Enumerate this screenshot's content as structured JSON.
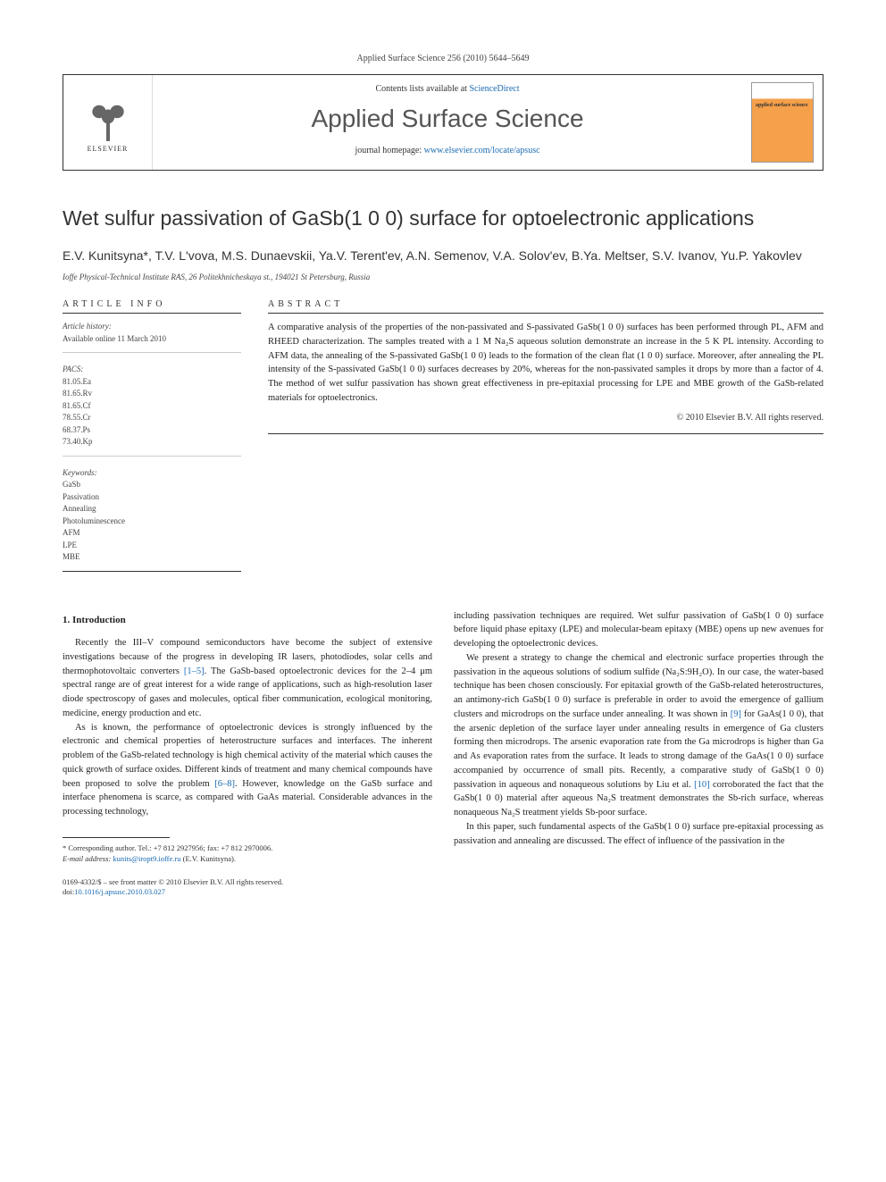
{
  "journal_ref": "Applied Surface Science 256 (2010) 5644–5649",
  "header": {
    "publisher_name": "ELSEVIER",
    "contents_prefix": "Contents lists available at ",
    "contents_link": "ScienceDirect",
    "journal_title": "Applied Surface Science",
    "homepage_prefix": "journal homepage: ",
    "homepage_link": "www.elsevier.com/locate/apsusc",
    "cover_label": "applied surface science"
  },
  "article": {
    "title": "Wet sulfur passivation of GaSb(1 0 0) surface for optoelectronic applications",
    "authors": "E.V. Kunitsyna*, T.V. L'vova, M.S. Dunaevskii, Ya.V. Terent'ev, A.N. Semenov, V.A. Solov'ev, B.Ya. Meltser, S.V. Ivanov, Yu.P. Yakovlev",
    "affiliation": "Ioffe Physical-Technical Institute RAS, 26 Politekhnicheskaya st., 194021 St Petersburg, Russia"
  },
  "info": {
    "header": "ARTICLE INFO",
    "history_label": "Article history:",
    "history_value": "Available online 11 March 2010",
    "pacs_label": "PACS:",
    "pacs_values": "81.05.Ea\n81.65.Rv\n81.65.Cf\n78.55.Cr\n68.37.Ps\n73.40.Kp",
    "keywords_label": "Keywords:",
    "keywords_values": "GaSb\nPassivation\nAnnealing\nPhotoluminescence\nAFM\nLPE\nMBE"
  },
  "abstract": {
    "header": "ABSTRACT",
    "text": "A comparative analysis of the properties of the non-passivated and S-passivated GaSb(1 0 0) surfaces has been performed through PL, AFM and RHEED characterization. The samples treated with a 1 M Na₂S aqueous solution demonstrate an increase in the 5 K PL intensity. According to AFM data, the annealing of the S-passivated GaSb(1 0 0) leads to the formation of the clean flat (1 0 0) surface. Moreover, after annealing the PL intensity of the S-passivated GaSb(1 0 0) surfaces decreases by 20%, whereas for the non-passivated samples it drops by more than a factor of 4. The method of wet sulfur passivation has shown great effectiveness in pre-epitaxial processing for LPE and MBE growth of the GaSb-related materials for optoelectronics.",
    "copyright": "© 2010 Elsevier B.V. All rights reserved."
  },
  "body": {
    "section_heading": "1. Introduction",
    "col1_p1": "Recently the III–V compound semiconductors have become the subject of extensive investigations because of the progress in developing IR lasers, photodiodes, solar cells and thermophotovoltaic converters [1–5]. The GaSb-based optoelectronic devices for the 2–4 μm spectral range are of great interest for a wide range of applications, such as high-resolution laser diode spectroscopy of gases and molecules, optical fiber communication, ecological monitoring, medicine, energy production and etc.",
    "col1_p2": "As is known, the performance of optoelectronic devices is strongly influenced by the electronic and chemical properties of heterostructure surfaces and interfaces. The inherent problem of the GaSb-related technology is high chemical activity of the material which causes the quick growth of surface oxides. Different kinds of treatment and many chemical compounds have been proposed to solve the problem [6–8]. However, knowledge on the GaSb surface and interface phenomena is scarce, as compared with GaAs material. Considerable advances in the processing technology,",
    "col2_p1": "including passivation techniques are required. Wet sulfur passivation of GaSb(1 0 0) surface before liquid phase epitaxy (LPE) and molecular-beam epitaxy (MBE) opens up new avenues for developing the optoelectronic devices.",
    "col2_p2": "We present a strategy to change the chemical and electronic surface properties through the passivation in the aqueous solutions of sodium sulfide (Na₂S:9H₂O). In our case, the water-based technique has been chosen consciously. For epitaxial growth of the GaSb-related heterostructures, an antimony-rich GaSb(1 0 0) surface is preferable in order to avoid the emergence of gallium clusters and microdrops on the surface under annealing. It was shown in [9] for GaAs(1 0 0), that the arsenic depletion of the surface layer under annealing results in emergence of Ga clusters forming then microdrops. The arsenic evaporation rate from the Ga microdrops is higher than Ga and As evaporation rates from the surface. It leads to strong damage of the GaAs(1 0 0) surface accompanied by occurrence of small pits. Recently, a comparative study of GaSb(1 0 0) passivation in aqueous and nonaqueous solutions by Liu et al. [10] corroborated the fact that the GaSb(1 0 0) material after aqueous Na₂S treatment demonstrates the Sb-rich surface, whereas nonaqueous Na₂S treatment yields Sb-poor surface.",
    "col2_p3": "In this paper, such fundamental aspects of the GaSb(1 0 0) surface pre-epitaxial processing as passivation and annealing are discussed. The effect of influence of the passivation in the"
  },
  "footnote": {
    "corresponding": "* Corresponding author. Tel.: +7 812 2927956; fax: +7 812 2970006.",
    "email_label": "E-mail address: ",
    "email": "kunits@iropt9.ioffe.ru",
    "email_suffix": " (E.V. Kunitsyna)."
  },
  "bottom": {
    "line1": "0169-4332/$ – see front matter © 2010 Elsevier B.V. All rights reserved.",
    "doi_label": "doi:",
    "doi": "10.1016/j.apsusc.2010.03.027"
  },
  "colors": {
    "link": "#1a6bb3",
    "text": "#222",
    "border": "#333",
    "cover_orange": "#f5a04a"
  }
}
